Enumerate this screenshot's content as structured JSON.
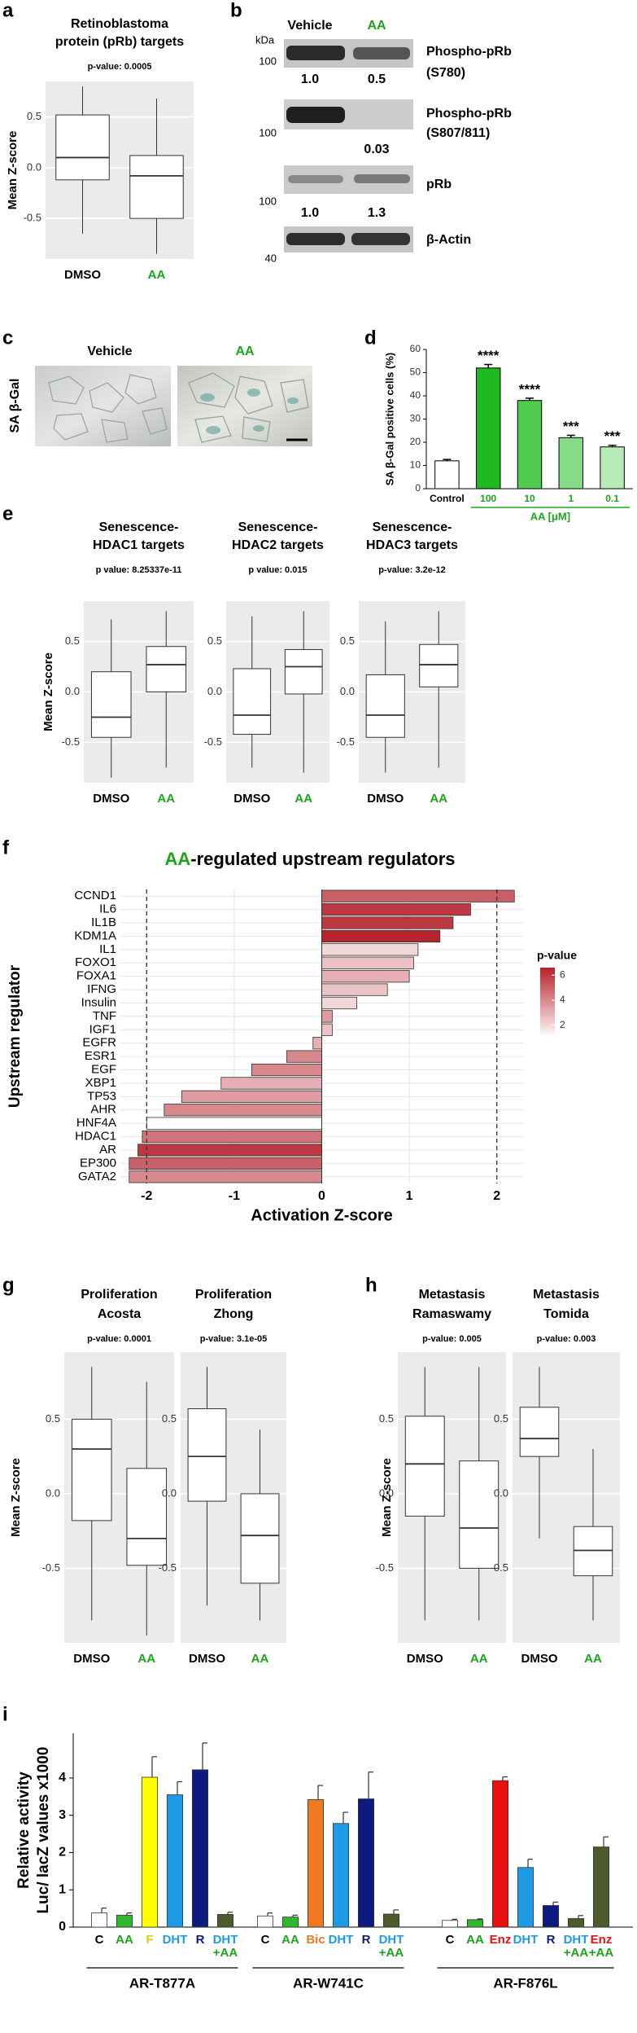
{
  "panel_labels": [
    "a",
    "b",
    "c",
    "d",
    "e",
    "f",
    "g",
    "h",
    "i"
  ],
  "blot": {
    "lanes": [
      "Vehicle",
      "AA"
    ],
    "unit": "kDa",
    "rows": [
      {
        "marker": "100",
        "quant": {
          "Vehicle": "1.0",
          "AA": "0.5"
        },
        "label": [
          "Phospho-pRb",
          "(S780)"
        ]
      },
      {
        "marker": "100",
        "quant": {
          "AA": "0.03"
        },
        "label": [
          "Phospho-pRb",
          "(S807/811)"
        ]
      },
      {
        "marker": "100",
        "quant": {
          "Vehicle": "1.0",
          "AA": "1.3"
        },
        "label": [
          "pRb"
        ]
      },
      {
        "marker": "40",
        "label": [
          "β-Actin"
        ]
      }
    ]
  },
  "micrograph": {
    "labels": [
      "Vehicle",
      "AA"
    ],
    "stain": "SA β-Gal"
  },
  "chart_data": [
    {
      "type": "box",
      "title": [
        "Retinoblastoma",
        "protein (pRb) targets"
      ],
      "subtitle": "p-value: 0.0005",
      "ylabel": "Mean Z-score",
      "categories": [
        "DMSO",
        "AA"
      ],
      "category_colors": [
        "#000000",
        "#1aa51a"
      ],
      "background": "#ebebeb",
      "boxes": [
        {
          "whislo": -0.65,
          "q1": -0.12,
          "med": 0.1,
          "q3": 0.52,
          "whishi": 0.8
        },
        {
          "whislo": -0.85,
          "q1": -0.5,
          "med": -0.08,
          "q3": 0.12,
          "whishi": 0.68
        }
      ],
      "ylim": [
        -0.9,
        0.85
      ],
      "yticks": [
        -0.5,
        {
          "value": 0,
          "label": "0.0"
        },
        0.5
      ]
    },
    {
      "type": "bar",
      "ylabel": "SA β-Gal positive cells (%)",
      "categories": [
        "Control",
        "100",
        "10",
        "1",
        "0.1"
      ],
      "values": [
        12,
        52,
        38,
        22,
        18
      ],
      "errors": [
        0.6,
        1.5,
        1,
        1,
        0.7
      ],
      "significance": [
        null,
        "****",
        "****",
        "***",
        "***"
      ],
      "colors": [
        "#ffffff",
        "#21b921",
        "#4fcb4f",
        "#86dc86",
        "#b6ecb6"
      ],
      "category_colors": [
        "#000000",
        "#1aa51a",
        "#1aa51a",
        "#1aa51a",
        "#1aa51a"
      ],
      "grouped": [
        false,
        true,
        true,
        true,
        true
      ],
      "group_label": "AA [μM]",
      "group_color": "#1aa51a",
      "ylim": [
        0,
        60
      ],
      "yticks": [
        0,
        10,
        20,
        30,
        40,
        50,
        60
      ]
    },
    {
      "type": "box",
      "title": [
        "Senescence-",
        "HDAC1 targets"
      ],
      "subtitle": "p value: 8.25337e-11",
      "ylabel": "Mean Z-score",
      "categories": [
        "DMSO",
        "AA"
      ],
      "category_colors": [
        "#000000",
        "#1aa51a"
      ],
      "background": "#ebebeb",
      "boxes": [
        {
          "whislo": -0.85,
          "q1": -0.45,
          "med": -0.25,
          "q3": 0.2,
          "whishi": 0.72
        },
        {
          "whislo": -0.75,
          "q1": 0.0,
          "med": 0.27,
          "q3": 0.45,
          "whishi": 0.8
        }
      ],
      "ylim": [
        -0.9,
        0.9
      ],
      "yticks": [
        -0.5,
        {
          "value": 0,
          "label": "0.0"
        },
        0.5
      ]
    },
    {
      "type": "box",
      "title": [
        "Senescence-",
        "HDAC2 targets"
      ],
      "subtitle": "p value: 0.015",
      "categories": [
        "DMSO",
        "AA"
      ],
      "category_colors": [
        "#000000",
        "#1aa51a"
      ],
      "background": "#ebebeb",
      "boxes": [
        {
          "whislo": -0.75,
          "q1": -0.42,
          "med": -0.23,
          "q3": 0.23,
          "whishi": 0.75
        },
        {
          "whislo": -0.8,
          "q1": -0.02,
          "med": 0.25,
          "q3": 0.42,
          "whishi": 0.8
        }
      ],
      "ylim": [
        -0.9,
        0.9
      ],
      "yticks": [
        -0.5,
        {
          "value": 0,
          "label": "0.0"
        },
        0.5
      ]
    },
    {
      "type": "box",
      "title": [
        "Senescence-",
        "HDAC3 targets"
      ],
      "subtitle": "p-value: 3.2e-12",
      "categories": [
        "DMSO",
        "AA"
      ],
      "category_colors": [
        "#000000",
        "#1aa51a"
      ],
      "background": "#ebebeb",
      "boxes": [
        {
          "whislo": -0.8,
          "q1": -0.45,
          "med": -0.23,
          "q3": 0.17,
          "whishi": 0.7
        },
        {
          "whislo": -0.75,
          "q1": 0.05,
          "med": 0.27,
          "q3": 0.47,
          "whishi": 0.8
        }
      ],
      "ylim": [
        -0.9,
        0.9
      ],
      "yticks": [
        -0.5,
        {
          "value": 0,
          "label": "0.0"
        },
        0.5
      ]
    },
    {
      "type": "hbar",
      "title_highlight": "AA",
      "title_highlight_color": "#1aa51a",
      "title": "-regulated upstream regulators",
      "xlabel": "Activation Z-score",
      "ylabel": "Upstream regulator",
      "categories": [
        "CCND1",
        "IL6",
        "IL1B",
        "KDM1A",
        "IL1",
        "FOXO1",
        "FOXA1",
        "IFNG",
        "Insulin",
        "TNF",
        "IGF1",
        "EGFR",
        "ESR1",
        "EGF",
        "XBP1",
        "TP53",
        "AHR",
        "HNF4A",
        "HDAC1",
        "AR",
        "EP300",
        "GATA2"
      ],
      "values": [
        2.2,
        1.7,
        1.5,
        1.35,
        1.1,
        1.05,
        1.0,
        0.75,
        0.4,
        0.12,
        0.12,
        -0.1,
        -0.4,
        -0.8,
        -1.15,
        -1.6,
        -1.8,
        -2.0,
        -2.05,
        -2.1,
        -2.2,
        -2.2
      ],
      "p_values": [
        5,
        6,
        6,
        6.5,
        2,
        2.5,
        3,
        2.5,
        2,
        3.5,
        2.5,
        3,
        4,
        4,
        3,
        3.5,
        4,
        1,
        4.5,
        6,
        5,
        4
      ],
      "xlim": [
        -2.3,
        2.3
      ],
      "xticks": [
        -2,
        -1,
        0,
        1,
        2
      ],
      "reference_lines": [
        -2,
        2
      ],
      "grid": true,
      "colorbar": {
        "title": "p-value",
        "lim": [
          1,
          6.6
        ],
        "ticks": [
          2,
          4,
          6
        ],
        "colors": [
          "#ffffff",
          "#b5202a"
        ]
      }
    },
    {
      "type": "box",
      "title": [
        "Proliferation",
        "Acosta"
      ],
      "subtitle": "p-value: 0.0001",
      "ylabel": "Mean Z-score",
      "categories": [
        "DMSO",
        "AA"
      ],
      "category_colors": [
        "#000000",
        "#1aa51a"
      ],
      "background": "#ebebeb",
      "boxes": [
        {
          "whislo": -0.85,
          "q1": -0.18,
          "med": 0.3,
          "q3": 0.5,
          "whishi": 0.85
        },
        {
          "whislo": -0.95,
          "q1": -0.48,
          "med": -0.3,
          "q3": 0.17,
          "whishi": 0.75
        }
      ],
      "ylim": [
        -1,
        0.95
      ],
      "yticks": [
        -0.5,
        {
          "value": 0,
          "label": "0.0"
        },
        0.5
      ]
    },
    {
      "type": "box",
      "title": [
        "Proliferation",
        "Zhong"
      ],
      "subtitle": "p-value: 3.1e-05",
      "categories": [
        "DMSO",
        "AA"
      ],
      "category_colors": [
        "#000000",
        "#1aa51a"
      ],
      "background": "#ebebeb",
      "boxes": [
        {
          "whislo": -0.75,
          "q1": -0.05,
          "med": 0.25,
          "q3": 0.57,
          "whishi": 0.85
        },
        {
          "whislo": -0.85,
          "q1": -0.6,
          "med": -0.28,
          "q3": 0.0,
          "whishi": 0.43
        }
      ],
      "ylim": [
        -1,
        0.95
      ],
      "yticks": [
        -0.5,
        {
          "value": 0,
          "label": "0.0"
        },
        0.5
      ]
    },
    {
      "type": "box",
      "title": [
        "Metastasis",
        "Ramaswamy"
      ],
      "subtitle": "p-value: 0.005",
      "ylabel": "Mean Z-score",
      "categories": [
        "DMSO",
        "AA"
      ],
      "category_colors": [
        "#000000",
        "#1aa51a"
      ],
      "background": "#ebebeb",
      "boxes": [
        {
          "whislo": -0.85,
          "q1": -0.15,
          "med": 0.2,
          "q3": 0.52,
          "whishi": 0.85
        },
        {
          "whislo": -0.85,
          "q1": -0.5,
          "med": -0.23,
          "q3": 0.22,
          "whishi": 0.85
        }
      ],
      "ylim": [
        -1,
        0.95
      ],
      "yticks": [
        -0.5,
        {
          "value": 0,
          "label": "0.0"
        },
        0.5
      ]
    },
    {
      "type": "box",
      "title": [
        "Metastasis",
        "Tomida"
      ],
      "subtitle": "p-value: 0.003",
      "categories": [
        "DMSO",
        "AA"
      ],
      "category_colors": [
        "#000000",
        "#1aa51a"
      ],
      "background": "#ebebeb",
      "boxes": [
        {
          "whislo": -0.3,
          "q1": 0.25,
          "med": 0.37,
          "q3": 0.58,
          "whishi": 0.85
        },
        {
          "whislo": -0.85,
          "q1": -0.55,
          "med": -0.38,
          "q3": -0.22,
          "whishi": 0.3
        }
      ],
      "ylim": [
        -1,
        0.95
      ],
      "yticks": [
        -0.5,
        {
          "value": 0,
          "label": "0.0"
        },
        0.5
      ]
    },
    {
      "type": "grouped_bar",
      "ylabel": [
        "Relative activity",
        "Luc/ lacZ values x1000"
      ],
      "ylim": [
        0,
        5.2
      ],
      "yticks": [
        0,
        1,
        2,
        3,
        4
      ],
      "label_colors": {
        "C": "#000000",
        "AA": "#1aa51a",
        "F": "#e6c800",
        "DHT": "#1e9be6",
        "R": "#0d1a80",
        "Bic": "#f07820",
        "Enz": "#e81010",
        "+AA": "#1aa51a"
      },
      "groups": [
        {
          "name": "AR-T877A",
          "categories": [
            [
              "C"
            ],
            [
              "AA"
            ],
            [
              "F"
            ],
            [
              "DHT"
            ],
            [
              "R"
            ],
            [
              "DHT",
              "+AA"
            ]
          ],
          "values": [
            0.38,
            0.32,
            4.02,
            3.55,
            4.22,
            0.34
          ],
          "errors": [
            0.13,
            0.06,
            0.55,
            0.35,
            0.72,
            0.06
          ],
          "colors": [
            "#ffffff",
            "#2db82d",
            "#ffff00",
            "#1e9be6",
            "#0d1a80",
            "#4d5a2c"
          ]
        },
        {
          "name": "AR-W741C",
          "categories": [
            [
              "C"
            ],
            [
              "AA"
            ],
            [
              "Bic"
            ],
            [
              "DHT"
            ],
            [
              "R"
            ],
            [
              "DHT",
              "+AA"
            ]
          ],
          "values": [
            0.3,
            0.27,
            3.42,
            2.78,
            3.44,
            0.35
          ],
          "errors": [
            0.08,
            0.05,
            0.38,
            0.3,
            0.72,
            0.11
          ],
          "colors": [
            "#ffffff",
            "#2db82d",
            "#f07820",
            "#1e9be6",
            "#0d1a80",
            "#4d5a2c"
          ]
        },
        {
          "name": "AR-F876L",
          "categories": [
            [
              "C"
            ],
            [
              "AA"
            ],
            [
              "Enz"
            ],
            [
              "DHT"
            ],
            [
              "R"
            ],
            [
              "DHT",
              "+AA"
            ],
            [
              "Enz",
              "+AA"
            ]
          ],
          "values": [
            0.18,
            0.2,
            3.93,
            1.6,
            0.58,
            0.23,
            2.15
          ],
          "errors": [
            0.03,
            0.02,
            0.1,
            0.22,
            0.09,
            0.08,
            0.27
          ],
          "colors": [
            "#ffffff",
            "#2db82d",
            "#e81010",
            "#1e9be6",
            "#0d1a80",
            "#4d5a2c",
            "#4d5a2c"
          ]
        }
      ]
    }
  ]
}
